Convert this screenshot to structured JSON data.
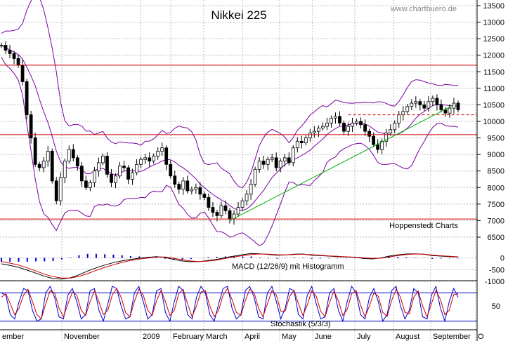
{
  "header": {
    "title": "Nikkei 225",
    "source": "www.chartbuero.de",
    "provider": "Hoppenstedt Charts"
  },
  "colors": {
    "bollinger": "#7a00a0",
    "support": "#cc0000",
    "trend": "#00b000",
    "macd": "#000000",
    "signal": "#cc0000",
    "histogram": "#0000cc",
    "stoch_k": "#0000cc",
    "stoch_d": "#cc0000"
  },
  "chart_data": [
    {
      "type": "candlestick",
      "title": "Nikkei 225",
      "ylim": [
        6500,
        13500
      ],
      "y_ticks": [
        6500,
        7000,
        7500,
        8000,
        8500,
        9000,
        9500,
        10000,
        10500,
        11000,
        11500,
        12000,
        12500,
        13000,
        13500
      ],
      "y_tick_labels": [
        "6500",
        "7000",
        "7500",
        "8000",
        "8500",
        "9000",
        "9500",
        "10000",
        "10500",
        "11000",
        "11500",
        "12000",
        "12500",
        "13000",
        "13500"
      ],
      "x_labels": [
        "ember",
        "November",
        "2009",
        "February",
        "March",
        "April",
        "May",
        "June",
        "July",
        "August",
        "September",
        "O"
      ],
      "close_series": [
        12300,
        12150,
        12050,
        11900,
        11700,
        11200,
        10200,
        9500,
        8700,
        8600,
        8800,
        9100,
        8200,
        7600,
        8300,
        8800,
        9150,
        8900,
        8650,
        8200,
        8000,
        8150,
        8500,
        8750,
        8950,
        8400,
        8150,
        8350,
        8650,
        8600,
        8250,
        8450,
        8700,
        8850,
        8900,
        8800,
        8950,
        9100,
        9200,
        8700,
        8350,
        8100,
        7950,
        8200,
        7900,
        7950,
        8000,
        7800,
        7700,
        7400,
        7250,
        7150,
        7450,
        7300,
        7050,
        7200,
        7400,
        7600,
        7800,
        8100,
        8550,
        8800,
        8700,
        8850,
        8900,
        8600,
        8800,
        8900,
        8750,
        9200,
        9400,
        9350,
        9500,
        9650,
        9700,
        9800,
        9850,
        9950,
        10100,
        10150,
        9950,
        9700,
        9850,
        9950,
        10000,
        9900,
        9700,
        9550,
        9300,
        9150,
        9400,
        9650,
        9750,
        9950,
        10200,
        10300,
        10450,
        10550,
        10600,
        10500,
        10400,
        10600,
        10700,
        10500,
        10350,
        10250,
        10400,
        10550,
        10350
      ],
      "support_lines": [
        11700,
        9600,
        7050
      ],
      "resistance_dashed": 10200,
      "trendline": [
        [
          54,
          7000
        ],
        [
          107,
          10500
        ]
      ]
    },
    {
      "type": "line",
      "title": "MACD (12/26/9) mit Histogramm",
      "ylim": [
        -1000,
        500
      ],
      "y_ticks": [
        0,
        -500,
        -1000
      ],
      "y_tick_labels": [
        "0",
        "-500",
        "-1000"
      ],
      "series": [
        {
          "name": "MACD",
          "values": [
            -250,
            -320,
            -400,
            -520,
            -650,
            -780,
            -880,
            -900,
            -850,
            -720,
            -560,
            -420,
            -300,
            -200,
            -120,
            -60,
            -10,
            30,
            60,
            20,
            -60,
            -130,
            -160,
            -150,
            -110,
            -60,
            20,
            80,
            140,
            190,
            180,
            150,
            120,
            130,
            160,
            170,
            120,
            100,
            80,
            60,
            40,
            30,
            -20,
            -40,
            0,
            80,
            130,
            170,
            180,
            160,
            100,
            80,
            60,
            40
          ]
        },
        {
          "name": "Signal",
          "values": [
            -150,
            -220,
            -300,
            -420,
            -560,
            -690,
            -800,
            -860,
            -860,
            -790,
            -670,
            -530,
            -400,
            -290,
            -190,
            -110,
            -50,
            0,
            40,
            40,
            -10,
            -80,
            -130,
            -150,
            -130,
            -90,
            -20,
            40,
            100,
            150,
            170,
            160,
            140,
            135,
            150,
            160,
            140,
            115,
            90,
            70,
            50,
            35,
            5,
            -20,
            -10,
            40,
            100,
            150,
            170,
            165,
            125,
            95,
            70,
            50
          ]
        }
      ]
    },
    {
      "type": "line",
      "title": "Stochastik (5/3/3)",
      "ylim": [
        0,
        100
      ],
      "y_ticks": [
        50
      ],
      "y_tick_labels": [
        "50"
      ],
      "series": [
        {
          "name": "%K",
          "values": [
            80,
            75,
            30,
            20,
            60,
            90,
            85,
            40,
            15,
            20,
            80,
            95,
            70,
            25,
            20,
            75,
            90,
            60,
            20,
            30,
            85,
            90,
            40,
            15,
            55,
            95,
            90,
            50,
            20,
            25,
            80,
            95,
            60,
            20,
            30,
            85,
            90,
            35,
            15,
            60,
            95,
            85,
            30,
            20,
            70,
            95,
            80,
            30,
            15,
            55,
            90,
            95,
            45,
            20,
            30,
            85,
            95,
            70,
            25,
            20,
            80,
            95,
            60,
            20,
            45,
            90,
            85,
            30,
            20,
            75,
            95,
            55,
            20,
            25,
            80,
            90,
            40,
            15,
            60,
            95,
            80,
            30,
            20,
            70,
            90,
            60,
            15,
            30,
            85,
            95,
            50,
            20,
            40,
            90,
            80,
            25,
            20,
            75,
            95,
            45,
            15,
            60,
            90,
            70
          ]
        },
        {
          "name": "%D",
          "values": [
            70,
            78,
            55,
            30,
            45,
            75,
            88,
            60,
            30,
            20,
            55,
            85,
            80,
            45,
            25,
            55,
            82,
            75,
            40,
            28,
            60,
            85,
            60,
            30,
            40,
            75,
            90,
            70,
            35,
            25,
            60,
            88,
            75,
            40,
            28,
            62,
            86,
            60,
            28,
            40,
            78,
            88,
            55,
            25,
            50,
            82,
            85,
            50,
            25,
            40,
            75,
            90,
            65,
            35,
            28,
            62,
            88,
            80,
            45,
            25,
            55,
            85,
            75,
            38,
            38,
            72,
            86,
            55,
            28,
            52,
            85,
            72,
            38,
            25,
            58,
            84,
            62,
            28,
            42,
            78,
            85,
            52,
            25,
            50,
            80,
            72,
            35,
            26,
            62,
            88,
            70,
            35,
            32,
            70,
            84,
            50,
            25,
            55,
            85,
            65,
            30,
            40,
            76,
            78
          ]
        }
      ]
    }
  ],
  "labels": {
    "macd": "MACD (12/26/9) mit Histogramm",
    "stoch": "Stochastik (5/3/3)"
  }
}
